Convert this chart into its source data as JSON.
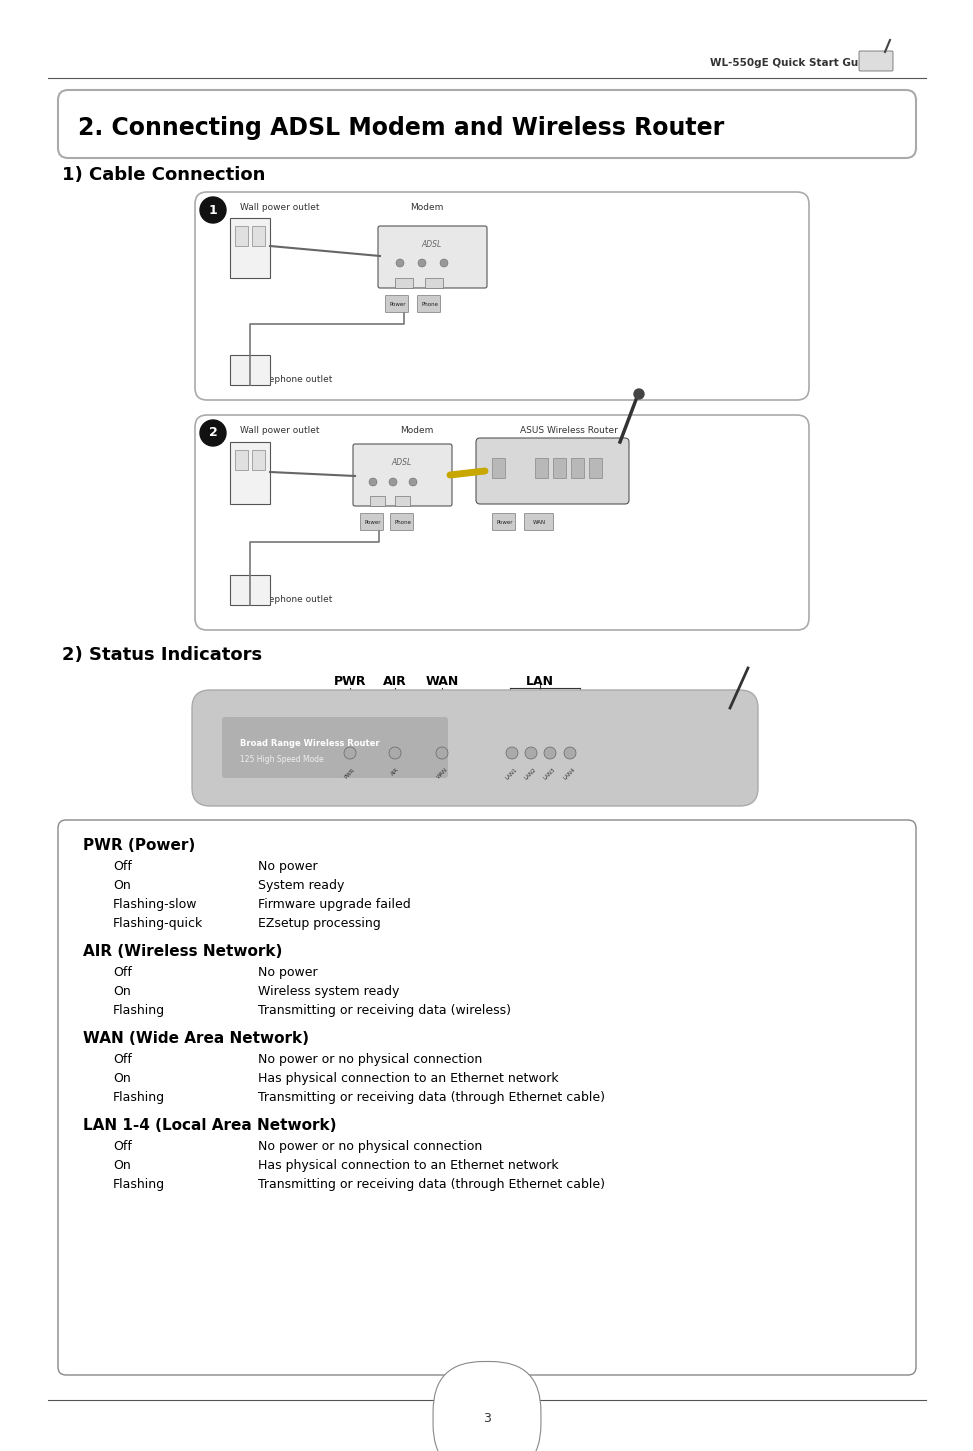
{
  "page_title": "WL-550gE Quick Start Guide",
  "section_title": "2. Connecting ADSL Modem and Wireless Router",
  "subsection1": "1) Cable Connection",
  "subsection2": "2) Status Indicators",
  "diagram1_labels": {
    "wall_power": "Wall power outlet",
    "modem": "Modem",
    "wall_phone": "Wall telephone outlet"
  },
  "diagram2_labels": {
    "wall_power": "Wall power outlet",
    "modem": "Modem",
    "router": "ASUS Wireless Router",
    "wall_phone": "Wall telephone outlet"
  },
  "pwr_title": "PWR (Power)",
  "pwr_entries": [
    [
      "Off",
      "No power"
    ],
    [
      "On",
      "System ready"
    ],
    [
      "Flashing-slow",
      "Firmware upgrade failed"
    ],
    [
      "Flashing-quick",
      "EZsetup processing"
    ]
  ],
  "air_title": "AIR (Wireless Network)",
  "air_entries": [
    [
      "Off",
      "No power"
    ],
    [
      "On",
      "Wireless system ready"
    ],
    [
      "Flashing",
      "Transmitting or receiving data (wireless)"
    ]
  ],
  "wan_title": "WAN (Wide Area Network)",
  "wan_entries": [
    [
      "Off",
      "No power or no physical connection"
    ],
    [
      "On",
      "Has physical connection to an Ethernet network"
    ],
    [
      "Flashing",
      "Transmitting or receiving data (through Ethernet cable)"
    ]
  ],
  "lan_title": "LAN 1-4 (Local Area Network)",
  "lan_entries": [
    [
      "Off",
      "No power or no physical connection"
    ],
    [
      "On",
      "Has physical connection to an Ethernet network"
    ],
    [
      "Flashing",
      "Transmitting or receiving data (through Ethernet cable)"
    ]
  ],
  "bg_color": "#ffffff",
  "page_number": "3"
}
